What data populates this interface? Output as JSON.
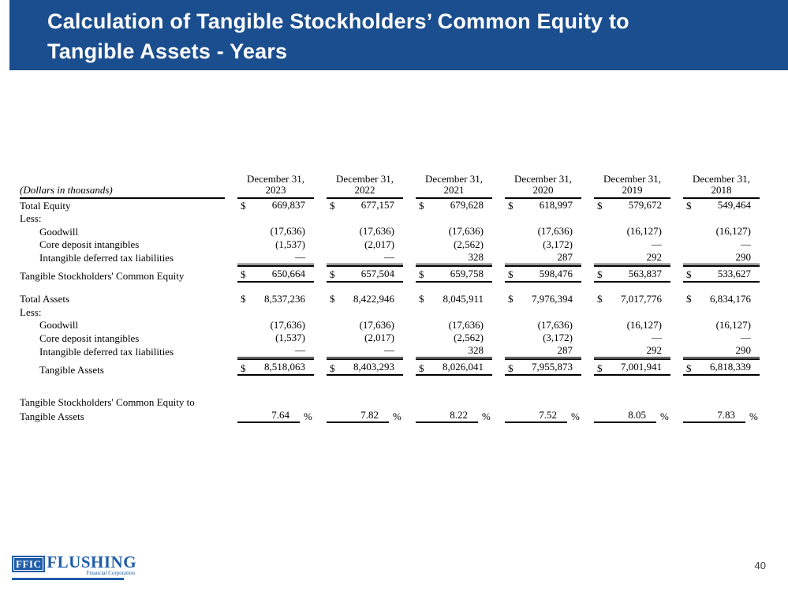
{
  "slide": {
    "title_line1": "Calculation of Tangible Stockholders’ Common Equity to",
    "title_line2": "Tangible Assets - Years",
    "page_number": "40"
  },
  "colors": {
    "header_bg": "#1b4e8e",
    "logo_blue": "#1e5ca8",
    "table_text": "#000000"
  },
  "logo": {
    "box_text": "FFIC",
    "name": "FLUSHING",
    "subtitle": "Financial Corporation"
  },
  "table": {
    "unit_note": "(Dollars in thousands)",
    "col_header_line1": "December 31,",
    "years": [
      "2023",
      "2022",
      "2021",
      "2020",
      "2019",
      "2018"
    ],
    "currency_symbol": "$",
    "percent_sign": "%",
    "rows": [
      {
        "label": "Total Equity",
        "indent": 0,
        "dollar": true,
        "values": [
          "669,837",
          "677,157",
          "679,628",
          "618,997",
          "579,672",
          "549,464"
        ]
      },
      {
        "label": "Less:",
        "indent": 0,
        "values": null
      },
      {
        "label": "Goodwill",
        "indent": 1,
        "values": [
          "(17,636)",
          "(17,636)",
          "(17,636)",
          "(17,636)",
          "(16,127)",
          "(16,127)"
        ]
      },
      {
        "label": "Core deposit intangibles",
        "indent": 1,
        "values": [
          "(1,537)",
          "(2,017)",
          "(2,562)",
          "(3,172)",
          "—",
          "—"
        ]
      },
      {
        "label": "Intangible deferred tax liabilities",
        "indent": 1,
        "style": "underline",
        "values": [
          "—",
          "—",
          "328",
          "287",
          "292",
          "290"
        ]
      },
      {
        "label": "Tangible Stockholders' Common Equity",
        "indent": 0,
        "dollar": true,
        "style": "total",
        "values": [
          "650,664",
          "657,504",
          "659,758",
          "598,476",
          "563,837",
          "533,627"
        ]
      },
      {
        "spacer": 13
      },
      {
        "label": "Total Assets",
        "indent": 0,
        "dollar": true,
        "values": [
          "8,537,236",
          "8,422,946",
          "8,045,911",
          "7,976,394",
          "7,017,776",
          "6,834,176"
        ]
      },
      {
        "label": "Less:",
        "indent": 0,
        "values": null
      },
      {
        "label": "Goodwill",
        "indent": 1,
        "values": [
          "(17,636)",
          "(17,636)",
          "(17,636)",
          "(17,636)",
          "(16,127)",
          "(16,127)"
        ]
      },
      {
        "label": "Core deposit intangibles",
        "indent": 1,
        "values": [
          "(1,537)",
          "(2,017)",
          "(2,562)",
          "(3,172)",
          "—",
          "—"
        ]
      },
      {
        "label": "Intangible deferred tax liabilities",
        "indent": 1,
        "style": "underline",
        "values": [
          "—",
          "—",
          "328",
          "287",
          "292",
          "290"
        ]
      },
      {
        "label": "Tangible Assets",
        "indent": 1,
        "dollar": true,
        "style": "total",
        "values": [
          "8,518,063",
          "8,403,293",
          "8,026,041",
          "7,955,873",
          "7,001,941",
          "6,818,339"
        ]
      },
      {
        "spacer": 25
      },
      {
        "label": "Tangible Stockholders' Common Equity to",
        "indent": 0,
        "values": null
      },
      {
        "label": "Tangible Assets",
        "indent": 0,
        "style": "percent",
        "values": [
          "7.64",
          "7.82",
          "8.22",
          "7.52",
          "8.05",
          "7.83"
        ]
      }
    ]
  }
}
